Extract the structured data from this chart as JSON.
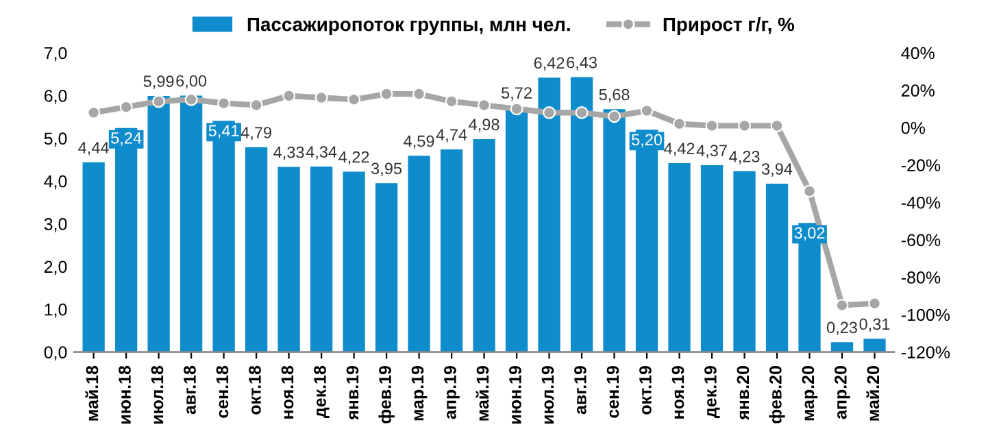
{
  "chart_data": {
    "type": "bar",
    "categories": [
      "май.18",
      "июн.18",
      "июл.18",
      "авг.18",
      "сен.18",
      "окт.18",
      "ноя.18",
      "дек.18",
      "янв.19",
      "фев.19",
      "мар.19",
      "апр.19",
      "май.19",
      "июн.19",
      "июл.19",
      "авг.19",
      "сен.19",
      "окт.19",
      "ноя.19",
      "дек.19",
      "янв.20",
      "фев.20",
      "мар.20",
      "апр.20",
      "май.20"
    ],
    "series": [
      {
        "name": "Пассажиропоток группы, млн чел.",
        "color": "#0f8ccb",
        "values": [
          4.44,
          5.24,
          5.99,
          6.0,
          5.41,
          4.79,
          4.33,
          4.34,
          4.22,
          3.95,
          4.59,
          4.74,
          4.98,
          5.72,
          6.42,
          6.43,
          5.68,
          5.2,
          4.42,
          4.37,
          4.23,
          3.94,
          3.02,
          0.23,
          0.31
        ],
        "value_labels": [
          "4,44",
          "5,24",
          "5,99",
          "6,00",
          "5,41",
          "4,79",
          "4,33",
          "4,34",
          "4,22",
          "3,95",
          "4,59",
          "4,74",
          "4,98",
          "5,72",
          "6,42",
          "6,43",
          "5,68",
          "5,20",
          "4,42",
          "4,37",
          "4,23",
          "3,94",
          "3,02",
          "0,23",
          "0,31"
        ]
      },
      {
        "name": "Прирост г/г, %",
        "type": "line",
        "axis": "y2",
        "color": "#a6a6a6",
        "marker": "circle",
        "line_style": "solid",
        "values": [
          8,
          11,
          14,
          15,
          13,
          12,
          17,
          16,
          15,
          18,
          18,
          14,
          12,
          10,
          8,
          8,
          6,
          9,
          2,
          1,
          1,
          1,
          -34,
          -95,
          -94
        ]
      }
    ],
    "ylim": [
      0,
      7
    ],
    "yticks": [
      {
        "value": 0,
        "label": "0,0"
      },
      {
        "value": 1,
        "label": "1,0"
      },
      {
        "value": 2,
        "label": "2,0"
      },
      {
        "value": 3,
        "label": "3,0"
      },
      {
        "value": 4,
        "label": "4,0"
      },
      {
        "value": 5,
        "label": "5,0"
      },
      {
        "value": 6,
        "label": "6,0"
      },
      {
        "value": 7,
        "label": "7,0"
      }
    ],
    "y2lim": [
      -120,
      40
    ],
    "y2ticks": [
      {
        "value": -120,
        "label": "-120%"
      },
      {
        "value": -100,
        "label": "-100%"
      },
      {
        "value": -80,
        "label": "-80%"
      },
      {
        "value": -60,
        "label": "-60%"
      },
      {
        "value": -40,
        "label": "-40%"
      },
      {
        "value": -20,
        "label": "-20%"
      },
      {
        "value": 0,
        "label": "0%"
      },
      {
        "value": 20,
        "label": "20%"
      },
      {
        "value": 40,
        "label": "40%"
      }
    ],
    "legend": "top",
    "grid": false
  }
}
